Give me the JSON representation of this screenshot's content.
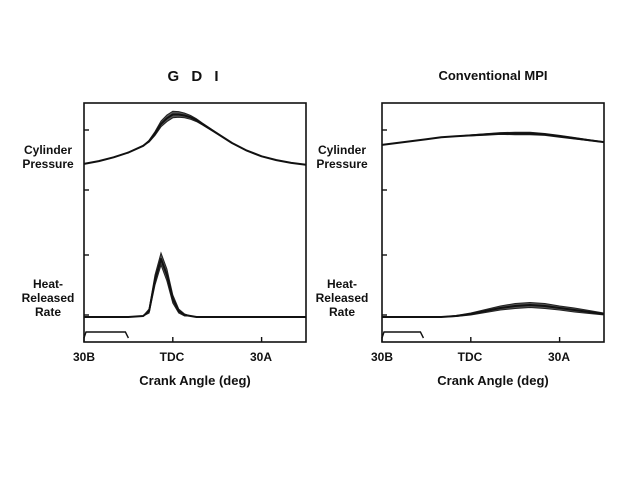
{
  "chart_data": [
    {
      "type": "line",
      "title": "G D I",
      "xlabel": "Crank Angle  (deg)",
      "ylabels": [
        "Cylinder Pressure",
        "Heat-Released Rate"
      ],
      "x_ticks": [
        "30B",
        "TDC",
        "30A"
      ],
      "x_tick_values": [
        -30,
        0,
        30
      ],
      "xlim": [
        -30,
        45
      ],
      "x": [
        -30,
        -25,
        -20,
        -15,
        -10,
        -8,
        -6,
        -4,
        -2,
        0,
        2,
        4,
        6,
        8,
        10,
        15,
        20,
        25,
        30,
        35,
        40,
        45
      ],
      "series": [
        {
          "id": "pressure",
          "values": [
            0.38,
            0.41,
            0.45,
            0.5,
            0.57,
            0.62,
            0.7,
            0.8,
            0.86,
            0.9,
            0.9,
            0.89,
            0.87,
            0.84,
            0.8,
            0.7,
            0.6,
            0.52,
            0.46,
            0.42,
            0.39,
            0.37
          ],
          "band": [
            0,
            0,
            0,
            0,
            0,
            0.02,
            0.04,
            0.06,
            0.07,
            0.07,
            0.06,
            0.05,
            0.04,
            0.03,
            0.02,
            0.01,
            0,
            0,
            0,
            0,
            0,
            0
          ]
        },
        {
          "id": "heat-release",
          "values": [
            0.08,
            0.08,
            0.08,
            0.08,
            0.09,
            0.14,
            0.45,
            0.66,
            0.5,
            0.26,
            0.14,
            0.1,
            0.09,
            0.08,
            0.08,
            0.08,
            0.08,
            0.08,
            0.08,
            0.08,
            0.08,
            0.08
          ],
          "band": [
            0,
            0,
            0,
            0,
            0,
            0.04,
            0.1,
            0.12,
            0.12,
            0.08,
            0.04,
            0.02,
            0,
            0,
            0,
            0,
            0,
            0,
            0,
            0,
            0,
            0
          ]
        }
      ],
      "injection_window": [
        -30,
        -15
      ]
    },
    {
      "type": "line",
      "title": "Conventional MPI",
      "xlabel": "Crank Angle  (deg)",
      "ylabels": [
        "Cylinder Pressure",
        "Heat-Released Rate"
      ],
      "x_ticks": [
        "30B",
        "TDC",
        "30A"
      ],
      "x_tick_values": [
        -30,
        0,
        30
      ],
      "xlim": [
        -30,
        45
      ],
      "x": [
        -30,
        -25,
        -20,
        -15,
        -10,
        -5,
        0,
        5,
        10,
        15,
        20,
        25,
        30,
        35,
        40,
        45
      ],
      "series": [
        {
          "id": "pressure",
          "values": [
            0.58,
            0.6,
            0.62,
            0.64,
            0.66,
            0.67,
            0.68,
            0.69,
            0.7,
            0.7,
            0.7,
            0.69,
            0.67,
            0.65,
            0.63,
            0.61
          ],
          "band": [
            0,
            0,
            0,
            0,
            0,
            0,
            0.01,
            0.015,
            0.02,
            0.025,
            0.025,
            0.02,
            0.02,
            0.015,
            0.01,
            0.005
          ]
        },
        {
          "id": "heat-release",
          "values": [
            0.08,
            0.08,
            0.08,
            0.08,
            0.08,
            0.09,
            0.11,
            0.14,
            0.17,
            0.19,
            0.2,
            0.19,
            0.17,
            0.15,
            0.13,
            0.11
          ],
          "band": [
            0,
            0,
            0,
            0,
            0,
            0.01,
            0.02,
            0.03,
            0.04,
            0.05,
            0.05,
            0.05,
            0.04,
            0.04,
            0.03,
            0.02
          ]
        }
      ],
      "injection_window": [
        -30,
        -16
      ]
    }
  ]
}
